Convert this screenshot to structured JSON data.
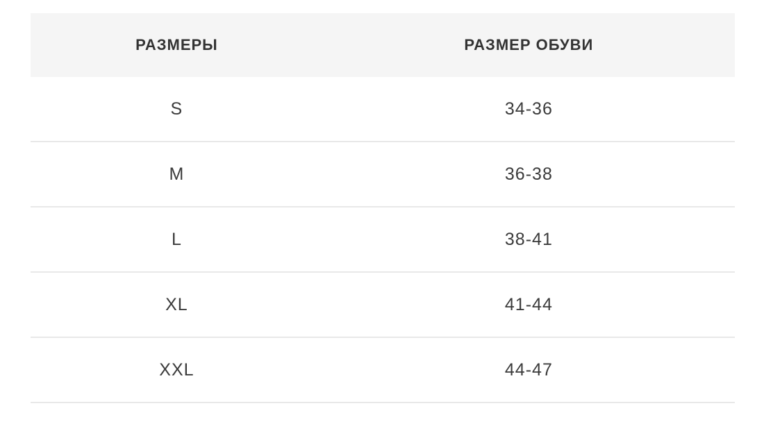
{
  "chart_data": {
    "type": "table",
    "title": "",
    "columns": [
      "РАЗМЕРЫ",
      "РАЗМЕР ОБУВИ"
    ],
    "rows": [
      [
        "S",
        "34-36"
      ],
      [
        "M",
        "36-38"
      ],
      [
        "L",
        "38-41"
      ],
      [
        "XL",
        "41-44"
      ],
      [
        "XXL",
        "44-47"
      ]
    ],
    "layout": {
      "header_background": "#f5f5f5",
      "row_border_color": "#e8e8e8",
      "text_color": "#3b3b3b",
      "header_text_color": "#333333",
      "page_background": "#ffffff",
      "column_alignment": "center"
    }
  }
}
